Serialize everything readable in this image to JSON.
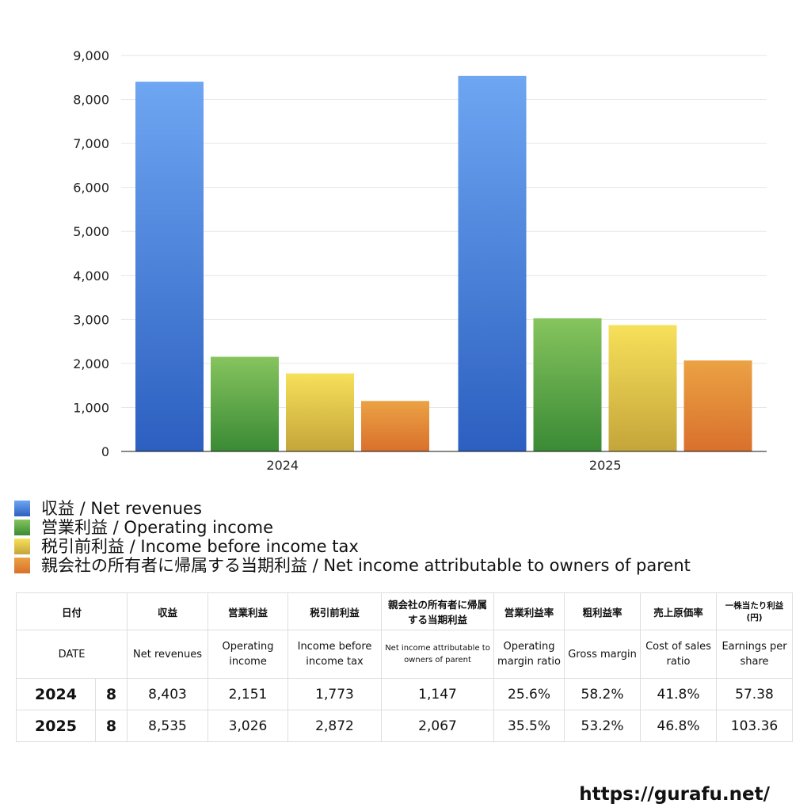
{
  "chart_data": {
    "type": "bar",
    "categories": [
      "2024",
      "2025"
    ],
    "series": [
      {
        "name": "収益 / Net revenues",
        "values": [
          8403,
          8535
        ],
        "color_top": "#6ea6f2",
        "color_bottom": "#2c5fc0"
      },
      {
        "name": "営業利益 / Operating income",
        "values": [
          2151,
          3026
        ],
        "color_top": "#86c45e",
        "color_bottom": "#3a8a35"
      },
      {
        "name": "税引前利益 / Income before income tax",
        "values": [
          1773,
          2872
        ],
        "color_top": "#f7e05a",
        "color_bottom": "#c4a53a"
      },
      {
        "name": "親会社の所有者に帰属する当期利益 / Net income attributable to owners of parent",
        "values": [
          1147,
          2067
        ],
        "color_top": "#eba244",
        "color_bottom": "#d9702c"
      }
    ],
    "ylim": [
      0,
      9000
    ],
    "yticks": [
      "0",
      "1,000",
      "2,000",
      "3,000",
      "4,000",
      "5,000",
      "6,000",
      "7,000",
      "8,000",
      "9,000"
    ],
    "grid": true,
    "legend_position": "bottom-left",
    "title": "",
    "xlabel": "",
    "ylabel": ""
  },
  "table": {
    "headers_jp": [
      "日付",
      "",
      "収益",
      "営業利益",
      "税引前利益",
      "親会社の所有者に帰属する当期利益",
      "営業利益率",
      "粗利益率",
      "売上原価率",
      "一株当たり利益(円)"
    ],
    "headers_en": [
      "DATE",
      "",
      "Net revenues",
      "Operating income",
      "Income before income tax",
      "Net income attributable to owners of parent",
      "Operating margin ratio",
      "Gross margin",
      "Cost of sales ratio",
      "Earnings per share"
    ],
    "rows": [
      {
        "year": "2024",
        "month": "8",
        "net_revenues": "8,403",
        "operating_income": "2,151",
        "income_before_tax": "1,773",
        "net_income": "1,147",
        "operating_margin": "25.6%",
        "gross_margin": "58.2%",
        "cost_of_sales": "41.8%",
        "eps": "57.38"
      },
      {
        "year": "2025",
        "month": "8",
        "net_revenues": "8,535",
        "operating_income": "3,026",
        "income_before_tax": "2,872",
        "net_income": "2,067",
        "operating_margin": "35.5%",
        "gross_margin": "53.2%",
        "cost_of_sales": "46.8%",
        "eps": "103.36"
      }
    ]
  },
  "footer": {
    "url": "https://gurafu.net/"
  }
}
